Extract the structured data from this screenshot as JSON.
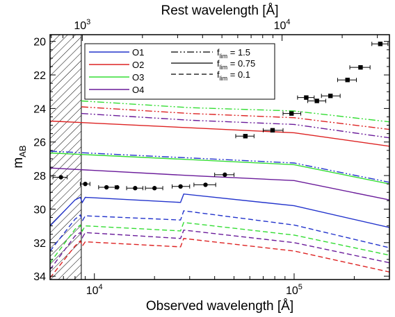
{
  "chart_data": {
    "type": "line",
    "title": "",
    "xlabel": "Observed wavelength [Å]",
    "x2label": "Rest wavelength [Å]",
    "ylabel": "m_AB",
    "ylabel_main": "m",
    "ylabel_sub": "AB",
    "xscale": "log",
    "xlim": [
      6000,
      300000
    ],
    "ylim": [
      34.2,
      19.6
    ],
    "x_ticks": [
      {
        "value": 10000,
        "label": "10",
        "exp": "4"
      },
      {
        "value": 100000,
        "label": "10",
        "exp": "5"
      }
    ],
    "x2_ticks": [
      {
        "value": 8700,
        "label": "10",
        "exp": "3"
      },
      {
        "value": 87000,
        "label": "10",
        "exp": "4"
      }
    ],
    "y_ticks": [
      20,
      22,
      24,
      26,
      28,
      30,
      32,
      34
    ],
    "hatched_region": [
      6000,
      8600
    ],
    "colors": {
      "O1": "#2233cc",
      "O2": "#dd2222",
      "O3": "#33dd33",
      "O4": "#6a1b9a"
    },
    "legend": {
      "models": [
        "O1",
        "O2",
        "O3",
        "O4"
      ],
      "flim": [
        {
          "sym": "f",
          "sub": "lim",
          "value": "= 1.5",
          "dash": "dashdotdot"
        },
        {
          "sym": "f",
          "sub": "lim",
          "value": "= 0.75",
          "dash": "solid"
        },
        {
          "sym": "f",
          "sub": "lim",
          "value": "= 0.1",
          "dash": "dashed"
        }
      ]
    },
    "series": [
      {
        "model": "O3",
        "flim": 1.5,
        "points": [
          [
            8600,
            23.55
          ],
          [
            30000,
            23.95
          ],
          [
            100000,
            24.15
          ],
          [
            300000,
            24.8
          ]
        ]
      },
      {
        "model": "O2",
        "flim": 1.5,
        "points": [
          [
            8600,
            23.9
          ],
          [
            30000,
            24.3
          ],
          [
            100000,
            24.55
          ],
          [
            300000,
            25.25
          ]
        ]
      },
      {
        "model": "O4",
        "flim": 1.5,
        "points": [
          [
            8600,
            24.3
          ],
          [
            30000,
            24.7
          ],
          [
            100000,
            24.95
          ],
          [
            300000,
            25.75
          ]
        ]
      },
      {
        "model": "O2",
        "flim": 0.75,
        "points": [
          [
            6000,
            24.75
          ],
          [
            30000,
            25.15
          ],
          [
            100000,
            25.45
          ],
          [
            300000,
            26.25
          ]
        ]
      },
      {
        "model": "O1",
        "flim": 1.5,
        "points": [
          [
            6000,
            26.55
          ],
          [
            30000,
            26.95
          ],
          [
            100000,
            27.25
          ],
          [
            300000,
            28.4
          ]
        ]
      },
      {
        "model": "O3",
        "flim": 0.75,
        "points": [
          [
            6000,
            26.65
          ],
          [
            30000,
            27.05
          ],
          [
            100000,
            27.35
          ],
          [
            300000,
            28.5
          ]
        ]
      },
      {
        "model": "O4",
        "flim": 0.75,
        "points": [
          [
            6000,
            27.55
          ],
          [
            30000,
            28.0
          ],
          [
            100000,
            28.3
          ],
          [
            300000,
            29.45
          ]
        ]
      },
      {
        "model": "O1",
        "flim": 0.75,
        "points": [
          [
            6000,
            31.0
          ],
          [
            8000,
            29.45
          ],
          [
            8500,
            29.3
          ],
          [
            8700,
            29.6
          ],
          [
            9000,
            29.3
          ],
          [
            27000,
            29.6
          ],
          [
            28000,
            29.1
          ],
          [
            100000,
            29.8
          ],
          [
            300000,
            31.1
          ]
        ]
      },
      {
        "model": "O1",
        "flim": 0.1,
        "points": [
          [
            6000,
            32.5
          ],
          [
            8000,
            30.6
          ],
          [
            8500,
            30.35
          ],
          [
            8700,
            30.7
          ],
          [
            9000,
            30.4
          ],
          [
            27000,
            30.65
          ],
          [
            28000,
            30.1
          ],
          [
            100000,
            30.95
          ],
          [
            300000,
            32.3
          ]
        ]
      },
      {
        "model": "O3",
        "flim": 0.1,
        "points": [
          [
            6000,
            33.2
          ],
          [
            8000,
            31.2
          ],
          [
            8500,
            30.95
          ],
          [
            8700,
            31.3
          ],
          [
            9000,
            31.0
          ],
          [
            27000,
            31.3
          ],
          [
            28000,
            30.8
          ],
          [
            100000,
            31.55
          ],
          [
            300000,
            32.75
          ]
        ]
      },
      {
        "model": "O4",
        "flim": 0.1,
        "points": [
          [
            6000,
            33.6
          ],
          [
            8000,
            31.6
          ],
          [
            8500,
            31.4
          ],
          [
            8700,
            31.7
          ],
          [
            9000,
            31.4
          ],
          [
            27000,
            31.75
          ],
          [
            28000,
            31.25
          ],
          [
            100000,
            32.0
          ],
          [
            300000,
            33.2
          ]
        ]
      },
      {
        "model": "O2",
        "flim": 0.1,
        "points": [
          [
            6000,
            34.1
          ],
          [
            8000,
            32.2
          ],
          [
            8500,
            31.9
          ],
          [
            8700,
            32.2
          ],
          [
            9000,
            31.95
          ],
          [
            27000,
            32.25
          ],
          [
            28000,
            31.75
          ],
          [
            100000,
            32.5
          ],
          [
            300000,
            33.75
          ]
        ]
      }
    ],
    "points_circle": [
      {
        "x": 6800,
        "y": 28.1,
        "xerr": [
          6200,
          7300
        ]
      },
      {
        "x": 9000,
        "y": 28.5,
        "xerr": [
          8500,
          9500
        ]
      },
      {
        "x": 11500,
        "y": 28.7,
        "xerr": [
          10500,
          12700
        ]
      },
      {
        "x": 13000,
        "y": 28.7,
        "xerr": null
      },
      {
        "x": 16000,
        "y": 28.75,
        "xerr": [
          14500,
          17500
        ]
      },
      {
        "x": 20000,
        "y": 28.75,
        "xerr": [
          18000,
          22000
        ]
      },
      {
        "x": 27000,
        "y": 28.65,
        "xerr": [
          24500,
          30000
        ]
      },
      {
        "x": 36000,
        "y": 28.55,
        "xerr": [
          31500,
          40500
        ]
      },
      {
        "x": 45000,
        "y": 27.95,
        "xerr": [
          40000,
          50000
        ]
      }
    ],
    "points_square": [
      {
        "x": 57000,
        "y": 25.65,
        "xerr": [
          51000,
          63000
        ]
      },
      {
        "x": 78000,
        "y": 25.3,
        "xerr": [
          70000,
          88000
        ]
      },
      {
        "x": 97000,
        "y": 24.3,
        "xerr": [
          88000,
          108000
        ]
      },
      {
        "x": 115000,
        "y": 23.35,
        "xerr": [
          104000,
          126000
        ]
      },
      {
        "x": 130000,
        "y": 23.55,
        "xerr": [
          117000,
          144000
        ]
      },
      {
        "x": 152000,
        "y": 23.25,
        "xerr": [
          137000,
          170000
        ]
      },
      {
        "x": 185000,
        "y": 22.3,
        "xerr": [
          165000,
          205000
        ]
      },
      {
        "x": 215000,
        "y": 21.55,
        "xerr": [
          190000,
          240000
        ]
      },
      {
        "x": 270000,
        "y": 20.15,
        "xerr": [
          245000,
          295000
        ]
      }
    ]
  }
}
